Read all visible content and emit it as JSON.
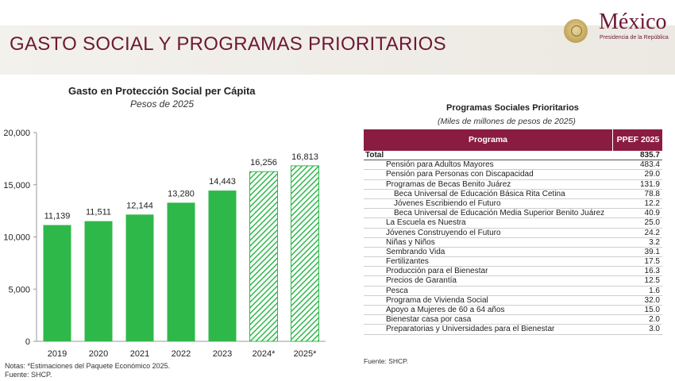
{
  "page": {
    "title": "GASTO SOCIAL Y PROGRAMAS PRIORITARIOS",
    "logo_text": "México",
    "logo_subtext": "Presidencia de la República"
  },
  "colors": {
    "brand": "#6d1835",
    "table_header": "#8a1c42",
    "bar_green": "#2fb84a",
    "bar_estimate": "#2fb84a"
  },
  "chart_data": {
    "type": "bar",
    "title": "Gasto en Protección Social per Cápita",
    "subtitle": "Pesos de 2025",
    "categories": [
      "2019",
      "2020",
      "2021",
      "2022",
      "2023",
      "2024*",
      "2025*"
    ],
    "values": [
      11139,
      11511,
      12144,
      13280,
      14443,
      16256,
      16813
    ],
    "value_labels": [
      "11,139",
      "11,511",
      "12,144",
      "13,280",
      "14,443",
      "16,256",
      "16,813"
    ],
    "estimated": [
      false,
      false,
      false,
      false,
      false,
      true,
      true
    ],
    "yticks": [
      0,
      5000,
      10000,
      15000,
      20000
    ],
    "ytick_labels": [
      "0",
      "5,000",
      "10,000",
      "15,000",
      "20,000"
    ],
    "ylim": [
      0,
      20000
    ],
    "grid": false,
    "notes": "Notas: *Estimaciones del Paquete Económico 2025.",
    "source": "Fuente: SHCP."
  },
  "table": {
    "title": "Programas Sociales Prioritarios",
    "subtitle": "(Miles de millones de pesos de 2025)",
    "headers": [
      "Programa",
      "PPEF 2025"
    ],
    "rows": [
      {
        "label": "Total",
        "value": "835.7",
        "level": "total"
      },
      {
        "label": "Pensión para Adultos Mayores",
        "value": "483.4",
        "level": "lvl1"
      },
      {
        "label": "Pensión para Personas con Discapacidad",
        "value": "29.0",
        "level": "lvl1"
      },
      {
        "label": "Programas de Becas Benito Juárez",
        "value": "131.9",
        "level": "lvl1"
      },
      {
        "label": "Beca Universal de Educación Básica Rita Cetina",
        "value": "78.8",
        "level": "lvl2"
      },
      {
        "label": "Jóvenes Escribiendo el Futuro",
        "value": "12.2",
        "level": "lvl2"
      },
      {
        "label": "Beca Universal de Educación Media Superior Benito Juárez",
        "value": "40.9",
        "level": "lvl2"
      },
      {
        "label": "La Escuela es Nuestra",
        "value": "25.0",
        "level": "lvl1"
      },
      {
        "label": "Jóvenes Construyendo el Futuro",
        "value": "24.2",
        "level": "lvl1"
      },
      {
        "label": "Niñas y Niños",
        "value": "3.2",
        "level": "lvl1"
      },
      {
        "label": "Sembrando Vida",
        "value": "39.1",
        "level": "lvl1"
      },
      {
        "label": "Fertilizantes",
        "value": "17.5",
        "level": "lvl1"
      },
      {
        "label": "Producción para el Bienestar",
        "value": "16.3",
        "level": "lvl1"
      },
      {
        "label": "Precios de Garantía",
        "value": "12.5",
        "level": "lvl1"
      },
      {
        "label": "Pesca",
        "value": "1.6",
        "level": "lvl1"
      },
      {
        "label": "Programa de Vivienda Social",
        "value": "32.0",
        "level": "lvl1"
      },
      {
        "label": "Apoyo a Mujeres de 60 a 64 años",
        "value": "15.0",
        "level": "lvl1"
      },
      {
        "label": "Bienestar casa por casa",
        "value": "2.0",
        "level": "lvl1"
      },
      {
        "label": "Preparatorias y Universidades para el Bienestar",
        "value": "3.0",
        "level": "lvl1"
      }
    ],
    "source": "Fuente: SHCP."
  }
}
